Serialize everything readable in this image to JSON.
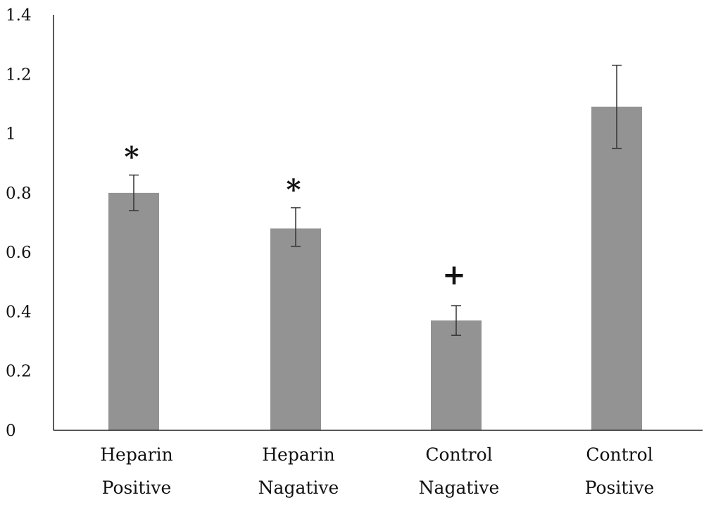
{
  "chart_data": {
    "type": "bar",
    "title": "",
    "xlabel": "",
    "ylabel": "",
    "categories": [
      [
        "Heparin",
        "Positive"
      ],
      [
        "Heparin",
        "Nagative"
      ],
      [
        "Control",
        "Nagative"
      ],
      [
        "Control",
        "Positive"
      ]
    ],
    "values": [
      0.8,
      0.68,
      0.37,
      1.09
    ],
    "error_low": [
      0.74,
      0.62,
      0.32,
      0.95
    ],
    "error_high": [
      0.86,
      0.75,
      0.42,
      1.23
    ],
    "annotations": [
      "*",
      "*",
      "+",
      ""
    ],
    "ylim": [
      0,
      1.4
    ],
    "yticks": [
      "0",
      "0.2",
      "0.4",
      "0.6",
      "0.8",
      "1",
      "1.2",
      "1.4"
    ],
    "ytick_values": [
      0,
      0.2,
      0.4,
      0.6,
      0.8,
      1.0,
      1.2,
      1.4
    ],
    "grid": false,
    "legend": "none",
    "bar_color": "#939393",
    "axis_color": "#222222"
  }
}
